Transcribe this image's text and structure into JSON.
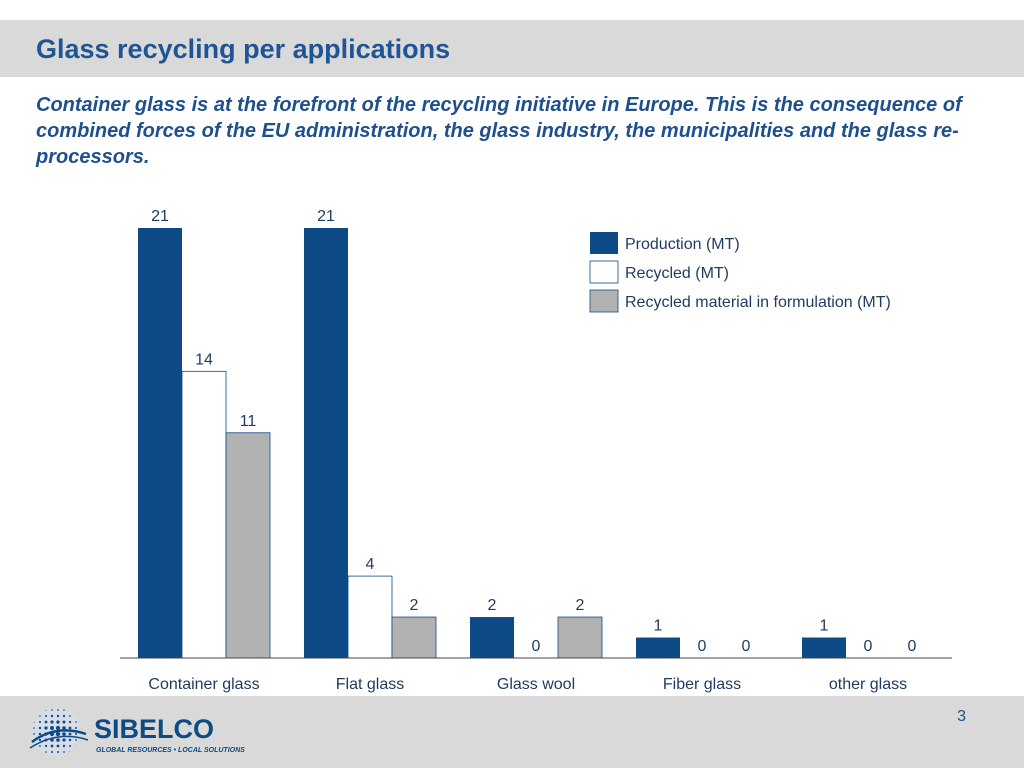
{
  "slide": {
    "title": "Glass recycling per applications",
    "subtitle": "Container glass is at the forefront of the recycling initiative in Europe. This is the consequence of combined forces of the EU administration, the glass industry, the municipalities and the glass re-processors.",
    "page_number": "3"
  },
  "brand": {
    "name": "SIBELCO",
    "tagline": "GLOBAL RESOURCES • LOCAL SOLUTIONS",
    "color": "#0d4a86"
  },
  "chart_data": {
    "type": "bar",
    "categories": [
      "Container glass",
      "Flat glass",
      "Glass wool",
      "Fiber glass",
      "other glass"
    ],
    "series": [
      {
        "name": "Production (MT)",
        "values": [
          21,
          21,
          2,
          1,
          1
        ],
        "color": "#0d4a86"
      },
      {
        "name": "Recycled (MT)",
        "values": [
          14,
          4,
          0,
          0,
          0
        ],
        "color": "#ffffff"
      },
      {
        "name": "Recycled material in formulation (MT)",
        "values": [
          11,
          2,
          2,
          0,
          0
        ],
        "color": "#b2b2b2"
      }
    ],
    "ylim": [
      0,
      21
    ],
    "grid": false,
    "legend": "top-right",
    "data_labels": true
  }
}
